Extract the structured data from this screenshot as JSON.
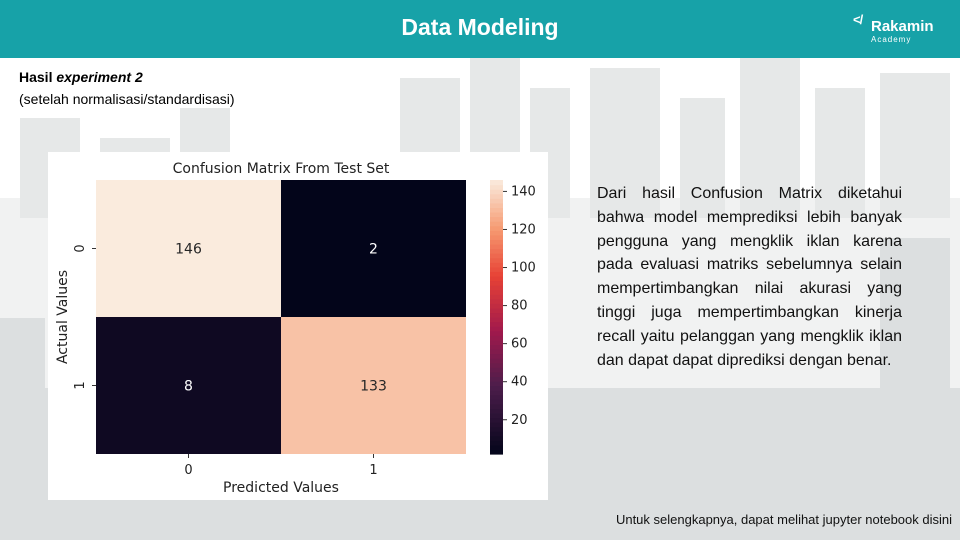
{
  "header": {
    "title": "Data Modeling",
    "logo_name": "Rakamin",
    "logo_sub": "Academy",
    "logo_mark": "</"
  },
  "subtitle": {
    "lead": "Hasil",
    "italic": "experiment",
    "number": "2",
    "note": "(setelah  normalisasi/standardisasi)"
  },
  "chart_data": {
    "type": "heatmap",
    "title": "Confusion Matrix From Test Set",
    "xlabel": "Predicted Values",
    "ylabel": "Actual Values",
    "x_categories": [
      "0",
      "1"
    ],
    "y_categories": [
      "0",
      "1"
    ],
    "values": [
      [
        146,
        2
      ],
      [
        8,
        133
      ]
    ],
    "colorbar": {
      "min": 2,
      "max": 146,
      "ticks": [
        20,
        40,
        60,
        80,
        100,
        120,
        140
      ]
    }
  },
  "description": "Dari hasil Confusion Matrix diketahui bahwa model memprediksi lebih banyak pengguna yang mengklik iklan karena pada evaluasi matriks sebelumnya selain mempertimbangkan nilai akurasi yang tinggi juga mempertimbangkan kinerja recall yaitu pelanggan yang mengklik iklan dan dapat dapat diprediksi dengan benar.",
  "footer": "Untuk selengkapnya, dapat melihat jupyter notebook disini",
  "colors": {
    "header": "#17a2a8",
    "heat_high": "#faebdd",
    "heat_low": "#03051a"
  }
}
